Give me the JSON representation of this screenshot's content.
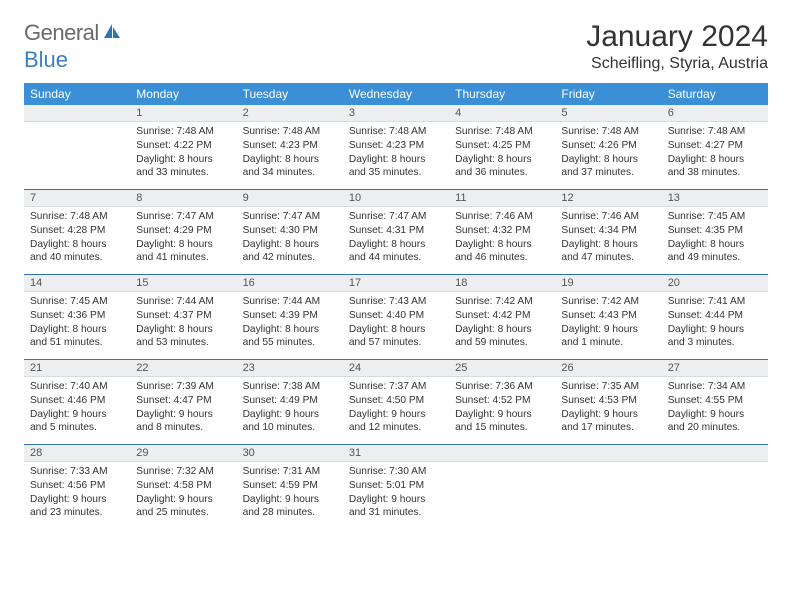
{
  "logo": {
    "text1": "General",
    "text2": "Blue"
  },
  "title": "January 2024",
  "location": "Scheifling, Styria, Austria",
  "colors": {
    "header_bg": "#3b8fd6",
    "header_text": "#ffffff",
    "daynum_bg": "#eceef0",
    "sep": "#2f73b5",
    "logo_gray": "#6a6a6a",
    "logo_blue": "#3b7fc4"
  },
  "day_labels": [
    "Sunday",
    "Monday",
    "Tuesday",
    "Wednesday",
    "Thursday",
    "Friday",
    "Saturday"
  ],
  "weeks": [
    [
      null,
      {
        "n": "1",
        "sr": "Sunrise: 7:48 AM",
        "ss": "Sunset: 4:22 PM",
        "d1": "Daylight: 8 hours",
        "d2": "and 33 minutes."
      },
      {
        "n": "2",
        "sr": "Sunrise: 7:48 AM",
        "ss": "Sunset: 4:23 PM",
        "d1": "Daylight: 8 hours",
        "d2": "and 34 minutes."
      },
      {
        "n": "3",
        "sr": "Sunrise: 7:48 AM",
        "ss": "Sunset: 4:23 PM",
        "d1": "Daylight: 8 hours",
        "d2": "and 35 minutes."
      },
      {
        "n": "4",
        "sr": "Sunrise: 7:48 AM",
        "ss": "Sunset: 4:25 PM",
        "d1": "Daylight: 8 hours",
        "d2": "and 36 minutes."
      },
      {
        "n": "5",
        "sr": "Sunrise: 7:48 AM",
        "ss": "Sunset: 4:26 PM",
        "d1": "Daylight: 8 hours",
        "d2": "and 37 minutes."
      },
      {
        "n": "6",
        "sr": "Sunrise: 7:48 AM",
        "ss": "Sunset: 4:27 PM",
        "d1": "Daylight: 8 hours",
        "d2": "and 38 minutes."
      }
    ],
    [
      {
        "n": "7",
        "sr": "Sunrise: 7:48 AM",
        "ss": "Sunset: 4:28 PM",
        "d1": "Daylight: 8 hours",
        "d2": "and 40 minutes."
      },
      {
        "n": "8",
        "sr": "Sunrise: 7:47 AM",
        "ss": "Sunset: 4:29 PM",
        "d1": "Daylight: 8 hours",
        "d2": "and 41 minutes."
      },
      {
        "n": "9",
        "sr": "Sunrise: 7:47 AM",
        "ss": "Sunset: 4:30 PM",
        "d1": "Daylight: 8 hours",
        "d2": "and 42 minutes."
      },
      {
        "n": "10",
        "sr": "Sunrise: 7:47 AM",
        "ss": "Sunset: 4:31 PM",
        "d1": "Daylight: 8 hours",
        "d2": "and 44 minutes."
      },
      {
        "n": "11",
        "sr": "Sunrise: 7:46 AM",
        "ss": "Sunset: 4:32 PM",
        "d1": "Daylight: 8 hours",
        "d2": "and 46 minutes."
      },
      {
        "n": "12",
        "sr": "Sunrise: 7:46 AM",
        "ss": "Sunset: 4:34 PM",
        "d1": "Daylight: 8 hours",
        "d2": "and 47 minutes."
      },
      {
        "n": "13",
        "sr": "Sunrise: 7:45 AM",
        "ss": "Sunset: 4:35 PM",
        "d1": "Daylight: 8 hours",
        "d2": "and 49 minutes."
      }
    ],
    [
      {
        "n": "14",
        "sr": "Sunrise: 7:45 AM",
        "ss": "Sunset: 4:36 PM",
        "d1": "Daylight: 8 hours",
        "d2": "and 51 minutes."
      },
      {
        "n": "15",
        "sr": "Sunrise: 7:44 AM",
        "ss": "Sunset: 4:37 PM",
        "d1": "Daylight: 8 hours",
        "d2": "and 53 minutes."
      },
      {
        "n": "16",
        "sr": "Sunrise: 7:44 AM",
        "ss": "Sunset: 4:39 PM",
        "d1": "Daylight: 8 hours",
        "d2": "and 55 minutes."
      },
      {
        "n": "17",
        "sr": "Sunrise: 7:43 AM",
        "ss": "Sunset: 4:40 PM",
        "d1": "Daylight: 8 hours",
        "d2": "and 57 minutes."
      },
      {
        "n": "18",
        "sr": "Sunrise: 7:42 AM",
        "ss": "Sunset: 4:42 PM",
        "d1": "Daylight: 8 hours",
        "d2": "and 59 minutes."
      },
      {
        "n": "19",
        "sr": "Sunrise: 7:42 AM",
        "ss": "Sunset: 4:43 PM",
        "d1": "Daylight: 9 hours",
        "d2": "and 1 minute."
      },
      {
        "n": "20",
        "sr": "Sunrise: 7:41 AM",
        "ss": "Sunset: 4:44 PM",
        "d1": "Daylight: 9 hours",
        "d2": "and 3 minutes."
      }
    ],
    [
      {
        "n": "21",
        "sr": "Sunrise: 7:40 AM",
        "ss": "Sunset: 4:46 PM",
        "d1": "Daylight: 9 hours",
        "d2": "and 5 minutes."
      },
      {
        "n": "22",
        "sr": "Sunrise: 7:39 AM",
        "ss": "Sunset: 4:47 PM",
        "d1": "Daylight: 9 hours",
        "d2": "and 8 minutes."
      },
      {
        "n": "23",
        "sr": "Sunrise: 7:38 AM",
        "ss": "Sunset: 4:49 PM",
        "d1": "Daylight: 9 hours",
        "d2": "and 10 minutes."
      },
      {
        "n": "24",
        "sr": "Sunrise: 7:37 AM",
        "ss": "Sunset: 4:50 PM",
        "d1": "Daylight: 9 hours",
        "d2": "and 12 minutes."
      },
      {
        "n": "25",
        "sr": "Sunrise: 7:36 AM",
        "ss": "Sunset: 4:52 PM",
        "d1": "Daylight: 9 hours",
        "d2": "and 15 minutes."
      },
      {
        "n": "26",
        "sr": "Sunrise: 7:35 AM",
        "ss": "Sunset: 4:53 PM",
        "d1": "Daylight: 9 hours",
        "d2": "and 17 minutes."
      },
      {
        "n": "27",
        "sr": "Sunrise: 7:34 AM",
        "ss": "Sunset: 4:55 PM",
        "d1": "Daylight: 9 hours",
        "d2": "and 20 minutes."
      }
    ],
    [
      {
        "n": "28",
        "sr": "Sunrise: 7:33 AM",
        "ss": "Sunset: 4:56 PM",
        "d1": "Daylight: 9 hours",
        "d2": "and 23 minutes."
      },
      {
        "n": "29",
        "sr": "Sunrise: 7:32 AM",
        "ss": "Sunset: 4:58 PM",
        "d1": "Daylight: 9 hours",
        "d2": "and 25 minutes."
      },
      {
        "n": "30",
        "sr": "Sunrise: 7:31 AM",
        "ss": "Sunset: 4:59 PM",
        "d1": "Daylight: 9 hours",
        "d2": "and 28 minutes."
      },
      {
        "n": "31",
        "sr": "Sunrise: 7:30 AM",
        "ss": "Sunset: 5:01 PM",
        "d1": "Daylight: 9 hours",
        "d2": "and 31 minutes."
      },
      null,
      null,
      null
    ]
  ]
}
